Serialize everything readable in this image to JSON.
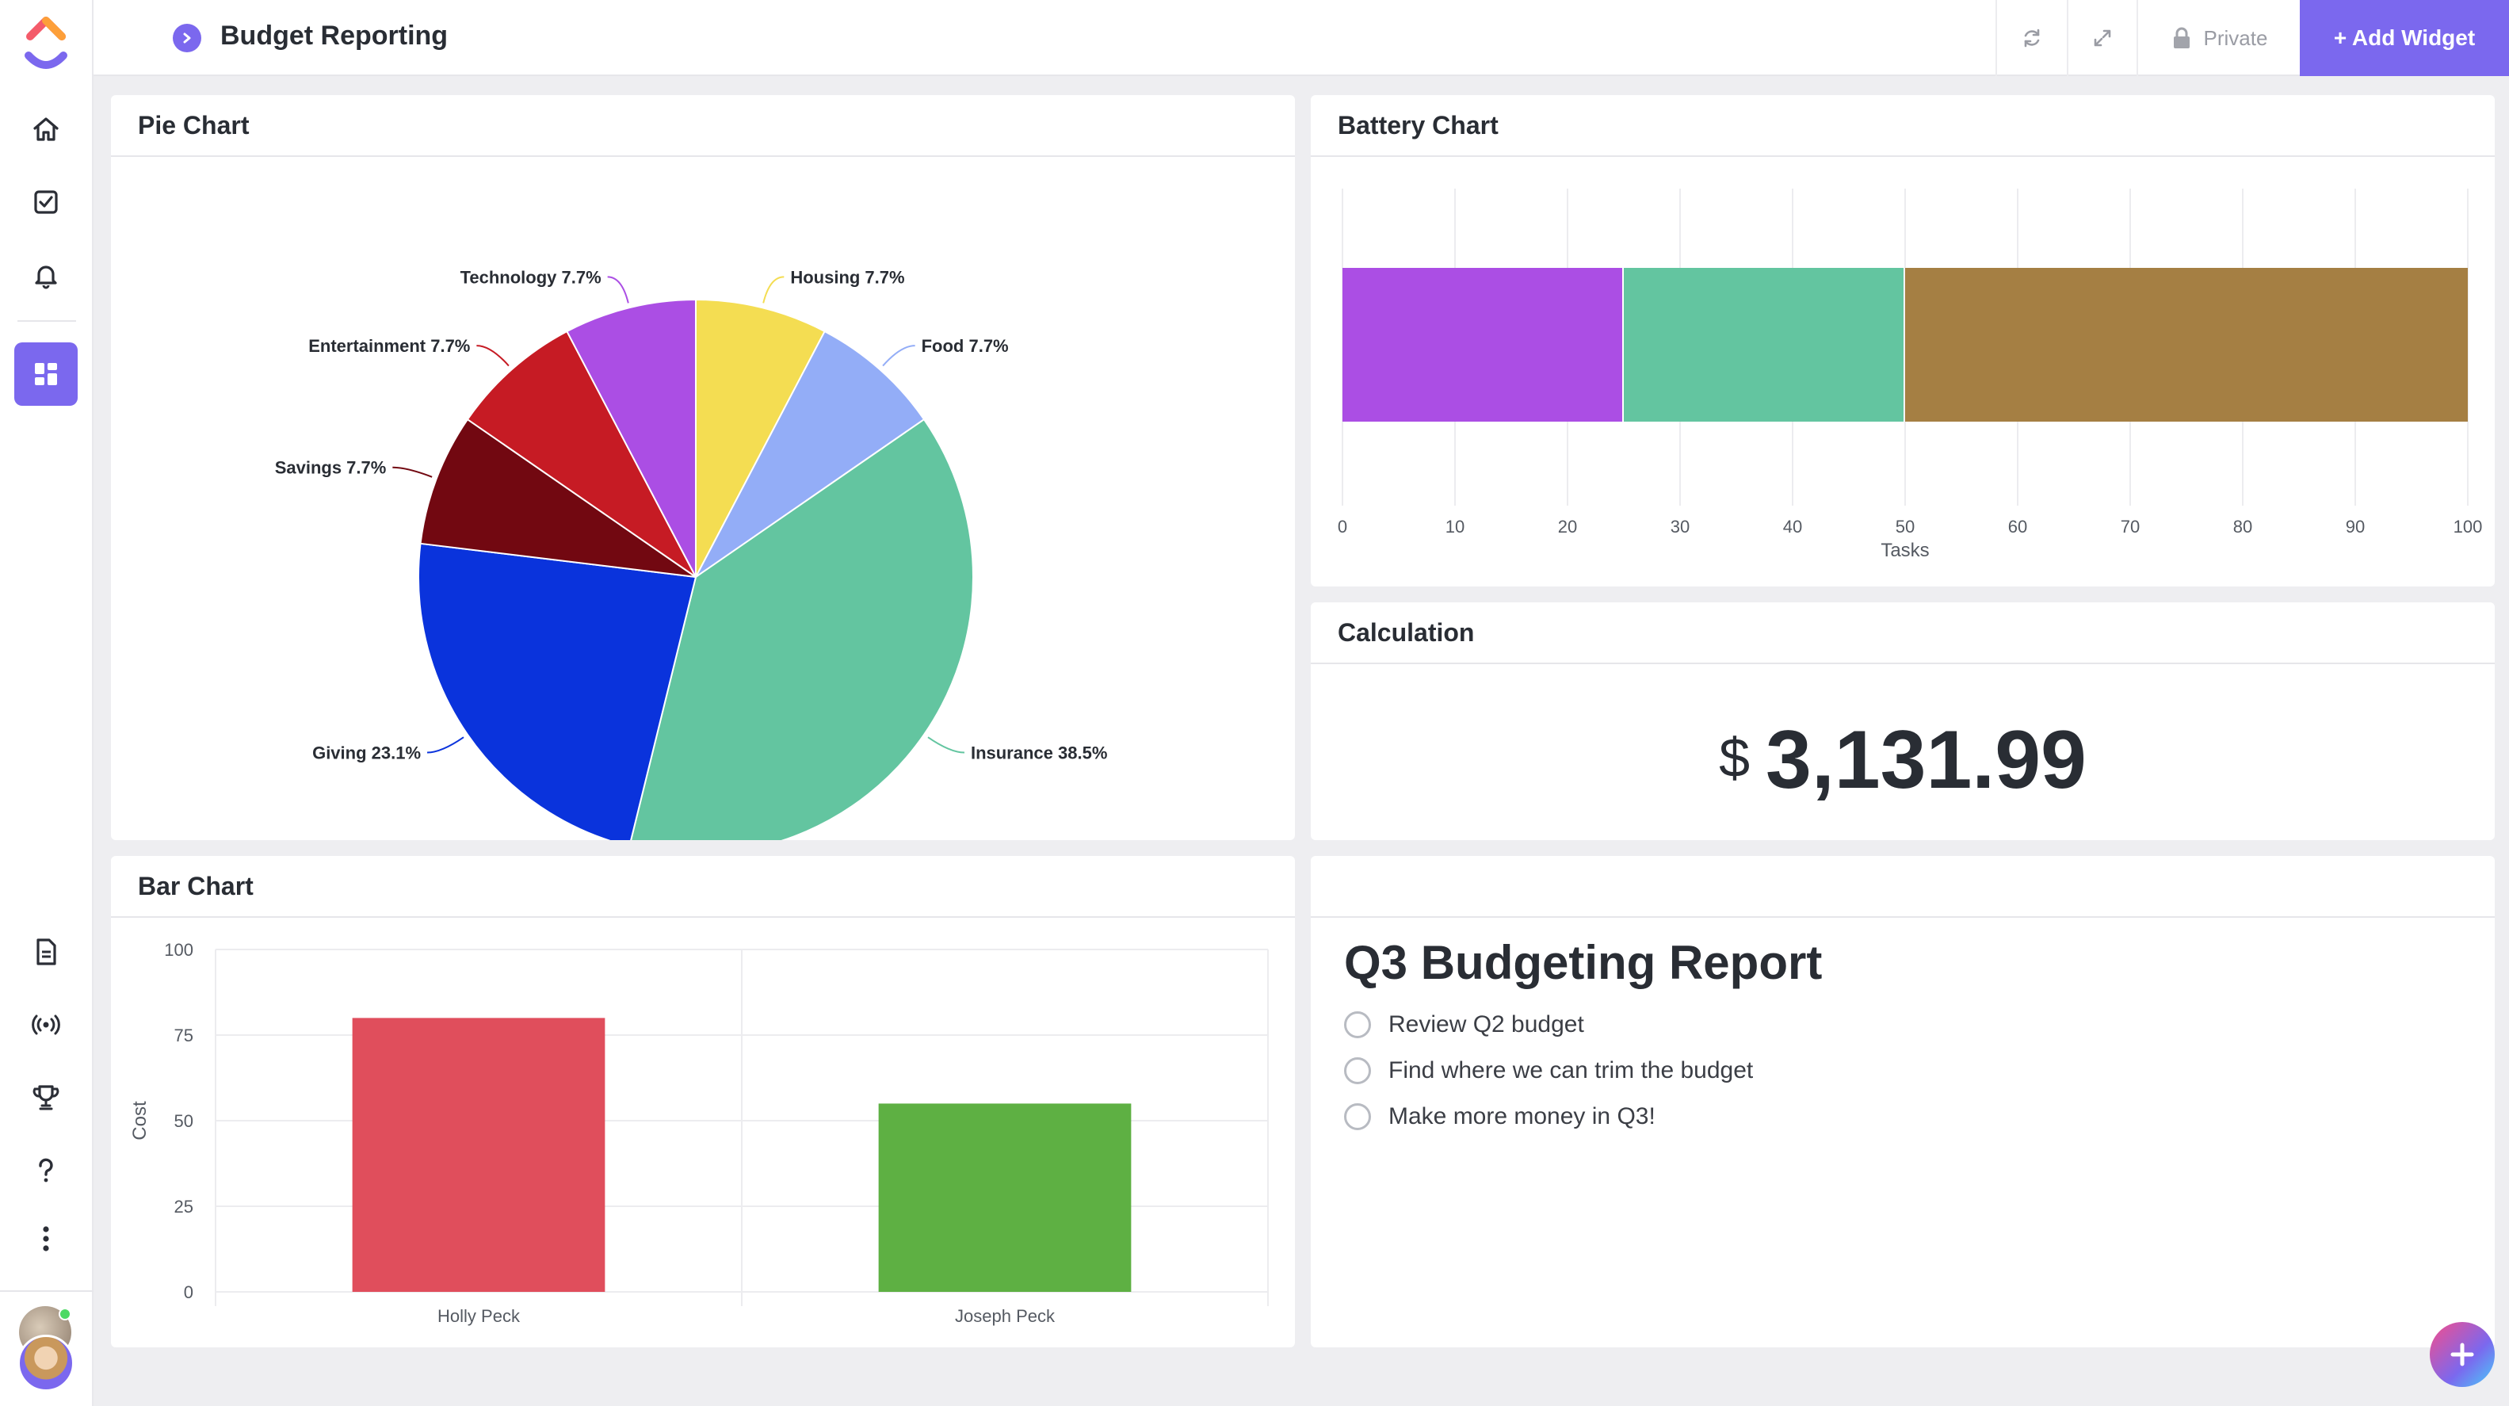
{
  "header": {
    "title": "Budget Reporting",
    "private_label": "Private",
    "add_widget_label": "+ Add Widget"
  },
  "pie_card": {
    "title": "Pie Chart",
    "chart_data": {
      "type": "pie",
      "slices": [
        {
          "label": "Housing",
          "value": 7.7,
          "pct_label": "7.7%",
          "color": "#f4dd52"
        },
        {
          "label": "Food",
          "value": 7.7,
          "pct_label": "7.7%",
          "color": "#93adf7"
        },
        {
          "label": "Insurance",
          "value": 38.5,
          "pct_label": "38.5%",
          "color": "#63c5a0"
        },
        {
          "label": "Giving",
          "value": 23.1,
          "pct_label": "23.1%",
          "color": "#0a33dc"
        },
        {
          "label": "Savings",
          "value": 7.7,
          "pct_label": "7.7%",
          "color": "#720811"
        },
        {
          "label": "Entertainment",
          "value": 7.7,
          "pct_label": "7.7%",
          "color": "#c61b24"
        },
        {
          "label": "Technology",
          "value": 7.7,
          "pct_label": "7.7%",
          "color": "#ab4ee4"
        }
      ]
    }
  },
  "battery_card": {
    "title": "Battery Chart",
    "chart_data": {
      "type": "bar",
      "orientation": "horizontal-stacked",
      "segments": [
        {
          "value": 25,
          "color": "#ab4ee4"
        },
        {
          "value": 25,
          "color": "#63c5a0"
        },
        {
          "value": 50,
          "color": "#a57f43"
        }
      ],
      "xlim": [
        0,
        100
      ],
      "ticks": [
        "0",
        "10",
        "20",
        "30",
        "40",
        "50",
        "60",
        "70",
        "80",
        "90",
        "100"
      ],
      "xlabel": "Tasks",
      "grid": true
    }
  },
  "calc_card": {
    "title": "Calculation",
    "currency": "$",
    "value": "3,131.99"
  },
  "bar_card": {
    "title": "Bar Chart",
    "chart_data": {
      "type": "bar",
      "categories": [
        "Holly Peck",
        "Joseph Peck"
      ],
      "values": [
        80,
        55
      ],
      "colors": [
        "#e04e5c",
        "#5eb043"
      ],
      "ylim": [
        0,
        100
      ],
      "yticks": [
        "0",
        "25",
        "50",
        "75",
        "100"
      ],
      "ylabel": "Cost",
      "xlabel": "",
      "grid": true
    }
  },
  "report_card": {
    "title": "Q3 Budgeting Report",
    "items": [
      {
        "label": "Review Q2 budget"
      },
      {
        "label": "Find where we can trim the budget"
      },
      {
        "label": "Make more money in Q3!"
      }
    ]
  },
  "icons": {
    "home": "home-icon",
    "tasks": "checkbox-icon",
    "notifications": "bell-icon",
    "dashboards": "dashboard-icon",
    "docs": "document-icon",
    "pulse": "broadcast-icon",
    "goals": "trophy-icon",
    "help": "help-icon",
    "more": "more-icon"
  }
}
